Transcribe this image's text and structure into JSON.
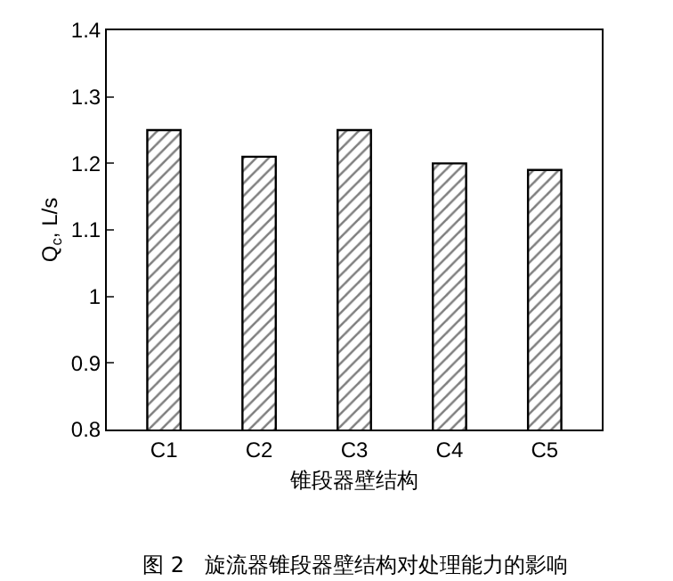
{
  "chart_data": {
    "type": "bar",
    "title": "图 2   旋流器锥段器壁结构对处理能力的影响",
    "xlabel": "锥段器壁结构",
    "ylabel": "Q$_{c}$, L/s",
    "categories": [
      "C1",
      "C2",
      "C3",
      "C4",
      "C5"
    ],
    "values": [
      1.25,
      1.21,
      1.25,
      1.2,
      1.19
    ],
    "ylim": [
      0.8,
      1.4
    ],
    "yticks": [
      0.8,
      0.9,
      1,
      1.1,
      1.2,
      1.3,
      1.4
    ]
  }
}
